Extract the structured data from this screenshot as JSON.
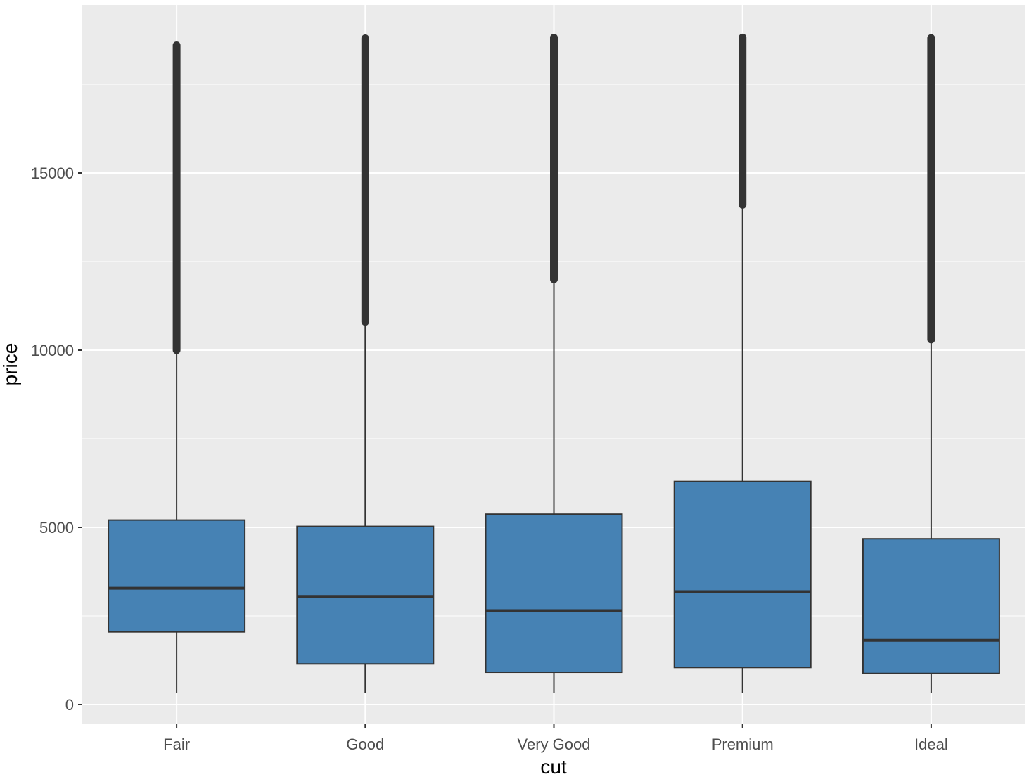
{
  "chart_data": {
    "type": "box",
    "xlabel": "cut",
    "ylabel": "price",
    "categories": [
      "Fair",
      "Good",
      "Very Good",
      "Premium",
      "Ideal"
    ],
    "ylim": [
      -550,
      19800
    ],
    "yticks": [
      0,
      5000,
      10000,
      15000
    ],
    "ytick_labels": [
      "0",
      "5000",
      "10000",
      "15000"
    ],
    "grid": true,
    "colors": {
      "panel": "#EBEBEB",
      "grid": "#FFFFFF",
      "box_fill": "#4682B4",
      "box_outline": "#333333",
      "outliers": "#333333",
      "axis_text": "#4D4D4D"
    },
    "boxes": [
      {
        "category": "Fair",
        "lower_whisker": 337,
        "q1": 2050,
        "median": 3282,
        "q3": 5206,
        "upper_whisker": 9960,
        "outlier_range": [
          10000,
          18600
        ]
      },
      {
        "category": "Good",
        "lower_whisker": 327,
        "q1": 1145,
        "median": 3050,
        "q3": 5028,
        "upper_whisker": 10800,
        "outlier_range": [
          10800,
          18800
        ]
      },
      {
        "category": "Very Good",
        "lower_whisker": 336,
        "q1": 912,
        "median": 2648,
        "q3": 5373,
        "upper_whisker": 12000,
        "outlier_range": [
          12000,
          18818
        ]
      },
      {
        "category": "Premium",
        "lower_whisker": 326,
        "q1": 1046,
        "median": 3185,
        "q3": 6296,
        "upper_whisker": 14100,
        "outlier_range": [
          14100,
          18823
        ]
      },
      {
        "category": "Ideal",
        "lower_whisker": 326,
        "q1": 878,
        "median": 1810,
        "q3": 4678,
        "upper_whisker": 10300,
        "outlier_range": [
          10300,
          18806
        ]
      }
    ]
  }
}
